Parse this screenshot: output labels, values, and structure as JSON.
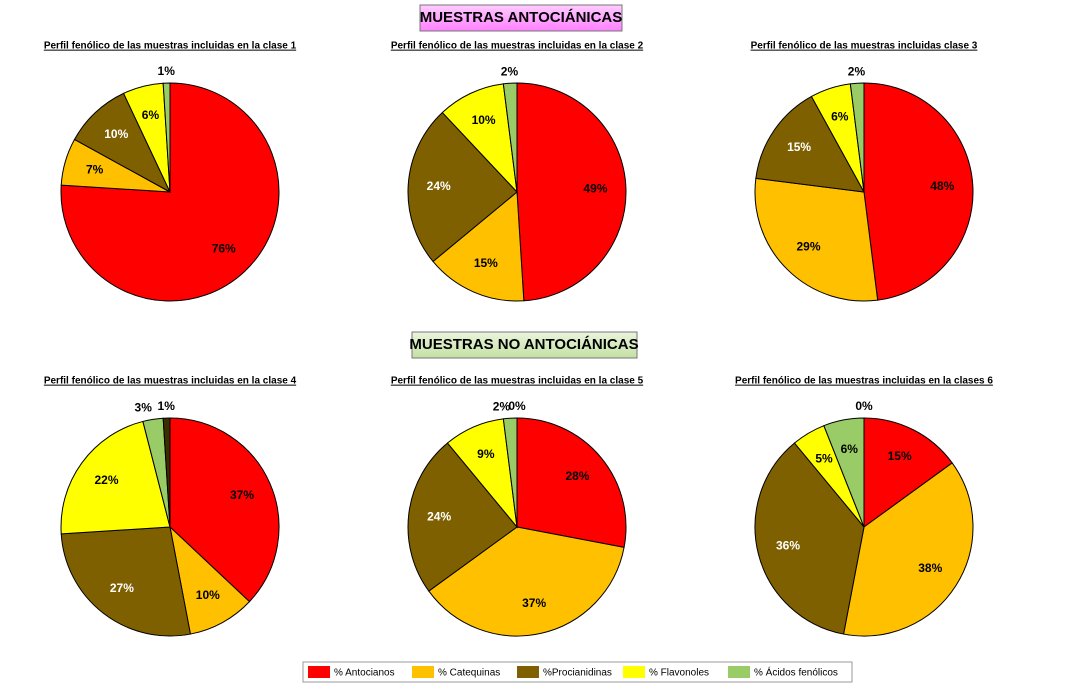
{
  "sections": [
    "MUESTRAS ANTOCIÁNICAS",
    "MUESTRAS NO ANTOCIÁNICAS"
  ],
  "chart_data": [
    {
      "type": "pie",
      "title": "Perfil fenólico de las muestras incluidas en la  clase 1",
      "categories": [
        "% Antocianos",
        "% Catequinas",
        "%Procianidinas",
        "% Flavonoles",
        "% Ácidos fenólicos"
      ],
      "values": [
        76,
        7,
        10,
        6,
        1
      ],
      "value_labels": [
        "76%",
        "7%",
        "10%",
        "6%",
        "1%"
      ],
      "colors": [
        "#ff0000",
        "#ffc000",
        "#7f6000",
        "#ffff00",
        "#99cc66"
      ]
    },
    {
      "type": "pie",
      "title": "Perfil fenólico de las muestras incluidas en la clase 2",
      "categories": [
        "% Antocianos",
        "% Catequinas",
        "%Procianidinas",
        "% Flavonoles",
        "% Ácidos fenólicos"
      ],
      "values": [
        49,
        15,
        24,
        10,
        2
      ],
      "value_labels": [
        "49%",
        "15%",
        "24%",
        "10%",
        "2%"
      ],
      "colors": [
        "#ff0000",
        "#ffc000",
        "#7f6000",
        "#ffff00",
        "#99cc66"
      ]
    },
    {
      "type": "pie",
      "title": "Perfil fenólico de las muestras incluidas clase 3",
      "categories": [
        "% Antocianos",
        "% Catequinas",
        "%Procianidinas",
        "% Flavonoles",
        "% Ácidos fenólicos"
      ],
      "values": [
        48,
        29,
        15,
        6,
        2
      ],
      "value_labels": [
        "48%",
        "29%",
        "15%",
        "6%",
        "2%"
      ],
      "colors": [
        "#ff0000",
        "#ffc000",
        "#7f6000",
        "#ffff00",
        "#99cc66"
      ]
    },
    {
      "type": "pie",
      "title": "Perfil fenólico de las muestras incluidas en la clase 4",
      "categories": [
        "% Antocianos",
        "% Catequinas",
        "%Procianidinas",
        "% Flavonoles",
        "% Ácidos fenólicos",
        null
      ],
      "values": [
        37,
        10,
        27,
        22,
        3,
        1
      ],
      "value_labels": [
        "37%",
        "10%",
        "27%",
        "22%",
        "3%",
        "1%"
      ],
      "colors": [
        "#ff0000",
        "#ffc000",
        "#7f6000",
        "#ffff00",
        "#99cc66",
        "#3d2e00"
      ]
    },
    {
      "type": "pie",
      "title": "Perfil fenólico de las muestras incluidas en la clase 5",
      "categories": [
        "% Antocianos",
        "% Catequinas",
        "%Procianidinas",
        "% Flavonoles",
        "% Ácidos fenólicos",
        null
      ],
      "values": [
        28,
        37,
        24,
        9,
        2,
        0
      ],
      "value_labels": [
        "28%",
        "37%",
        "24%",
        "9%",
        "2%",
        "0%"
      ],
      "colors": [
        "#ff0000",
        "#ffc000",
        "#7f6000",
        "#ffff00",
        "#99cc66",
        "#3d2e00"
      ]
    },
    {
      "type": "pie",
      "title": "Perfil fenólico de las muestras incluidas en la clases 6",
      "categories": [
        "% Antocianos",
        "% Catequinas",
        "%Procianidinas",
        "% Flavonoles",
        "% Ácidos fenólicos",
        null
      ],
      "values": [
        15,
        38,
        36,
        5,
        6,
        0
      ],
      "value_labels": [
        "15%",
        "38%",
        "36%",
        "5%",
        "6%",
        "0%"
      ],
      "colors": [
        "#ff0000",
        "#ffc000",
        "#7f6000",
        "#ffff00",
        "#99cc66",
        "#3d2e00"
      ]
    }
  ]
}
